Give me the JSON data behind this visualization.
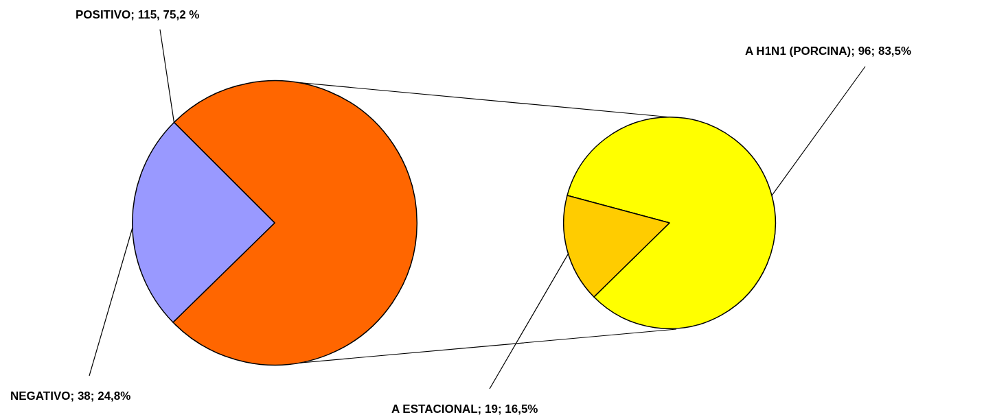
{
  "chart_data": [
    {
      "type": "pie",
      "categories": [
        "POSITIVO",
        "NEGATIVO"
      ],
      "values": [
        115,
        38
      ],
      "colors": [
        "#ff6600",
        "#9999ff"
      ],
      "value_labels": [
        "115, 75,2 %",
        "38; 24,8%"
      ]
    },
    {
      "type": "pie",
      "categories": [
        "A H1N1 (PORCINA)",
        "A ESTACIONAL"
      ],
      "values": [
        96,
        19
      ],
      "colors": [
        "#ffff00",
        "#ffcc00"
      ],
      "value_labels": [
        "96; 83,5%",
        "19; 16,5%"
      ]
    }
  ]
}
